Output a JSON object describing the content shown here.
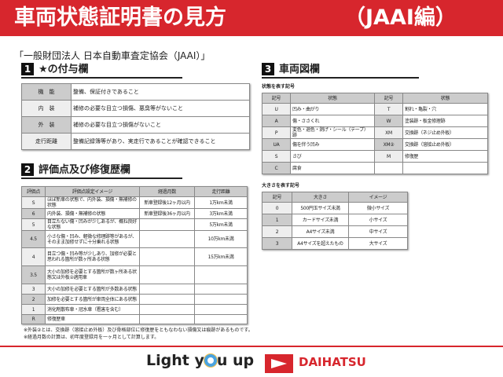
{
  "header": {
    "title": "車両状態証明書の見方",
    "subtitle": "（JAAI編）"
  },
  "organization": "「一般財団法人 日本自動車査定協会（JAAI）」",
  "section1": {
    "number": "1",
    "title": "★の付与欄",
    "rows": [
      {
        "label": "機　能",
        "text": "整備、保証付きであること"
      },
      {
        "label": "内　装",
        "text": "補修の必要な目立つ損傷、悪臭等がないこと"
      },
      {
        "label": "外　装",
        "text": "補修の必要な目立つ損傷がないこと"
      },
      {
        "label": "走行距離",
        "text": "整備記録簿等があり、実走行であることが確認できること"
      }
    ]
  },
  "section2": {
    "number": "2",
    "title": "評価点及び修復歴欄",
    "headers": [
      "評価点",
      "評価点設定イメージ",
      "経過月数",
      "走行距離"
    ],
    "rows": [
      [
        "S",
        "ほぼ新車の状態で、内外装、損傷・無補修の状態",
        "新車登録後12ヶ月以内",
        "1万km未満"
      ],
      [
        "6",
        "内外装、損傷・無補修の状態",
        "新車登録後36ヶ月以内",
        "3万km未満"
      ],
      [
        "5",
        "目立たない傷・凹みが少しあるが、概ね良好な状態",
        "",
        "5万km未満"
      ],
      [
        "4.5",
        "小さな傷・凹み、軽微な修理跡等があるが、そのまま加修せずに十分乗れる状態",
        "",
        "10万km未満"
      ],
      [
        "4",
        "目立つ傷・凹み等が少しあり、加修が必要と思われる箇所が数ヶ所ある状態",
        "",
        "15万km未満"
      ],
      [
        "3.5",
        "大小の加修を必要とする箇所が数ヶ所ある状態又は外板②適用車",
        "",
        ""
      ],
      [
        "3",
        "大小の加修を必要とする箇所が多数ある状態",
        "",
        ""
      ],
      [
        "2",
        "加修を必要とする箇所が車両全体にある状態",
        "",
        ""
      ],
      [
        "1",
        "消化剤散布車・冠水車（雹害を含む）",
        "",
        ""
      ],
      [
        "R",
        "修復歴車",
        "",
        ""
      ]
    ]
  },
  "section3": {
    "number": "3",
    "title": "車両図欄",
    "symbols": {
      "caption": "状態を表す記号",
      "headers": [
        "記号",
        "状態",
        "記号",
        "状態"
      ],
      "rows": [
        [
          "U",
          "凹み・曲がり",
          "T",
          "割れ・亀裂・穴"
        ],
        [
          "A",
          "傷・ささくれ",
          "W",
          "塗装跡・板金修理跡"
        ],
        [
          "P",
          "変色・退色・剥げ・シール（テープ）跡",
          "XM",
          "交換跡（ネジ止め外板）"
        ],
        [
          "UA",
          "傷を伴う凹み",
          "XM②",
          "交換跡（溶接止め外板）"
        ],
        [
          "S",
          "さび",
          "M",
          "修復歴"
        ],
        [
          "C",
          "腐食",
          "",
          ""
        ]
      ]
    },
    "sizes": {
      "caption": "大きさを表す記号",
      "headers": [
        "記号",
        "大きさ",
        "イメージ"
      ],
      "rows": [
        [
          "0",
          "500円玉サイズ未満",
          "微小サイズ"
        ],
        [
          "1",
          "カードサイズ未満",
          "小サイズ"
        ],
        [
          "2",
          "A4サイズ未満",
          "中サイズ"
        ],
        [
          "3",
          "A4サイズを超えたもの",
          "大サイズ"
        ]
      ]
    }
  },
  "notes": [
    "※外装②とは、交換跡（溶接止め外板）及び骨格部位に修復歴をともなわない損傷又は痕跡があるものです。",
    "※経過月数の計算は、初年度登録月を一ヶ月として計算します。"
  ],
  "footer": {
    "slogan_a": "Light y",
    "slogan_b": "u up",
    "brand": "DAIHATSU"
  },
  "colors": {
    "brand_red": "#d7262d"
  }
}
